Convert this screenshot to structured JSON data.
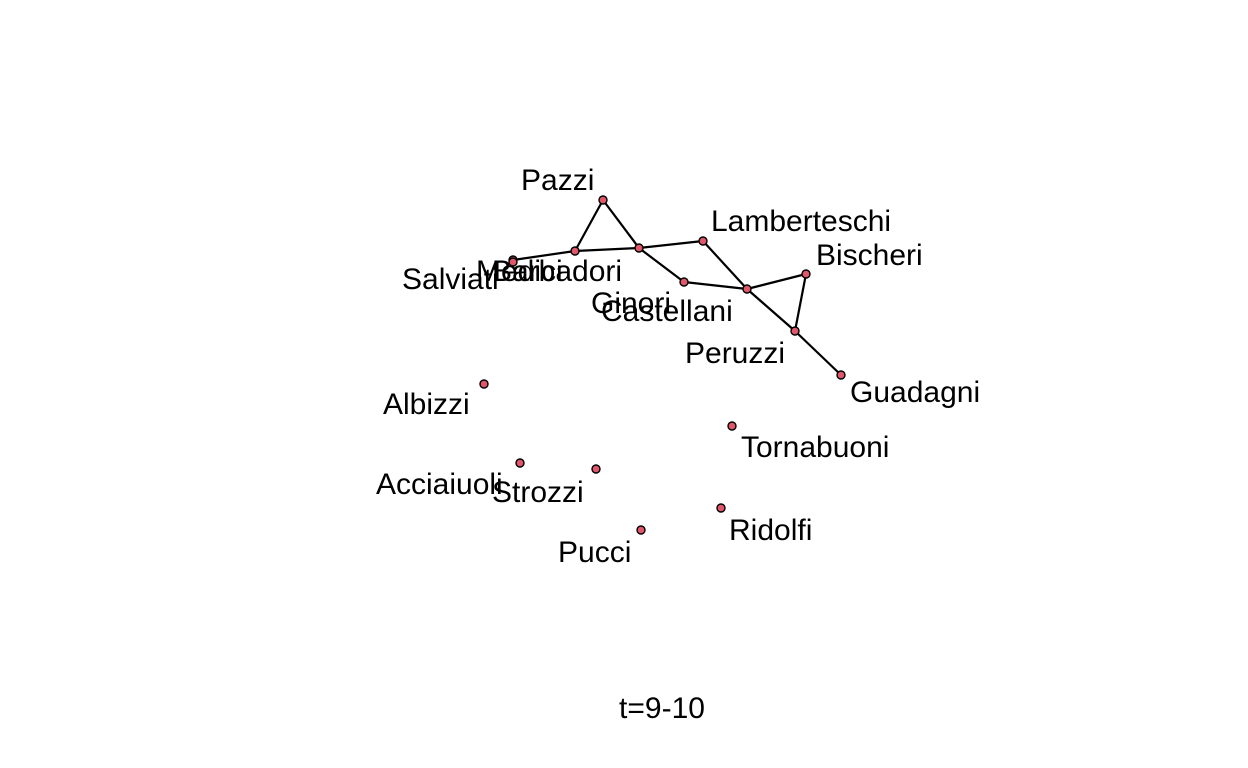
{
  "caption": "t=9-10",
  "style": {
    "node_fill": "#e0566b",
    "node_stroke": "#000000",
    "edge_color": "#000000",
    "background": "#ffffff"
  },
  "nodes": [
    {
      "id": "Acciaiuoli",
      "label": "Acciaiuoli"
    },
    {
      "id": "Albizzi",
      "label": "Albizzi"
    },
    {
      "id": "Barbadori",
      "label": "Barbadori"
    },
    {
      "id": "Bischeri",
      "label": "Bischeri"
    },
    {
      "id": "Castellani",
      "label": "Castellani"
    },
    {
      "id": "Ginori",
      "label": "Ginori"
    },
    {
      "id": "Guadagni",
      "label": "Guadagni"
    },
    {
      "id": "Lamberteschi",
      "label": "Lamberteschi"
    },
    {
      "id": "Medici",
      "label": "Medici"
    },
    {
      "id": "Pazzi",
      "label": "Pazzi"
    },
    {
      "id": "Peruzzi",
      "label": "Peruzzi"
    },
    {
      "id": "Pucci",
      "label": "Pucci"
    },
    {
      "id": "Ridolfi",
      "label": "Ridolfi"
    },
    {
      "id": "Salviati",
      "label": "Salviati"
    },
    {
      "id": "Strozzi",
      "label": "Strozzi"
    },
    {
      "id": "Tornabuoni",
      "label": "Tornabuoni"
    }
  ],
  "edges": [
    [
      "Salviati",
      "Medici"
    ],
    [
      "Medici",
      "Barbadori"
    ],
    [
      "Barbadori",
      "Pazzi"
    ],
    [
      "Pazzi",
      "Ginori"
    ],
    [
      "Barbadori",
      "Ginori"
    ],
    [
      "Ginori",
      "Lamberteschi"
    ],
    [
      "Ginori",
      "Castellani"
    ],
    [
      "Castellani",
      "Peruzzi"
    ],
    [
      "Lamberteschi",
      "Peruzzi"
    ],
    [
      "Peruzzi",
      "Bischeri"
    ],
    [
      "Bischeri",
      "Guadagni"
    ],
    [
      "Peruzzi",
      "Guadagni"
    ]
  ]
}
